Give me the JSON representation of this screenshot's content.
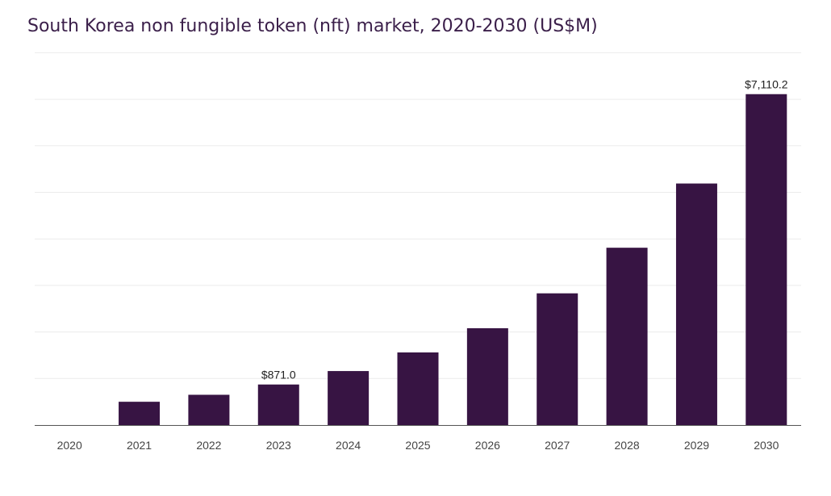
{
  "chart_data": {
    "type": "bar",
    "title": "South Korea non fungible token (nft) market, 2020-2030 (US$M)",
    "xlabel": "",
    "ylabel": "",
    "categories": [
      "2020",
      "2021",
      "2022",
      "2023",
      "2024",
      "2025",
      "2026",
      "2027",
      "2028",
      "2029",
      "2030"
    ],
    "values": [
      0,
      500,
      650,
      871.0,
      1160,
      1560,
      2080,
      2830,
      3810,
      5190,
      7110.2
    ],
    "data_labels": {
      "2023": "$871.0",
      "2030": "$7,110.2"
    },
    "ylim": [
      0,
      8000
    ],
    "grid": true,
    "bar_color": "#371443",
    "title_color": "#3b1f4a"
  }
}
